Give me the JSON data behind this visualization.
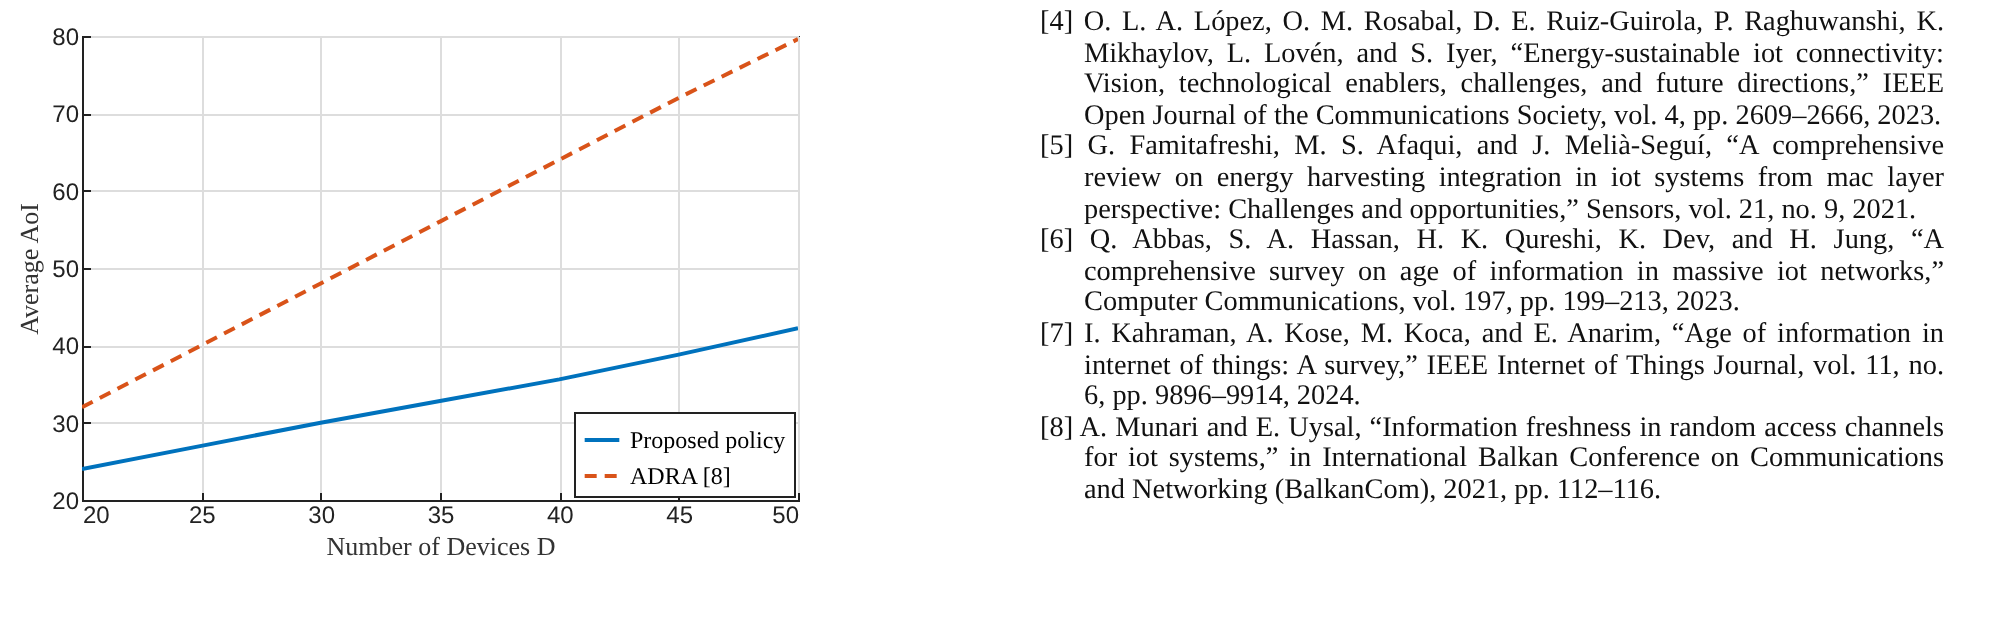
{
  "chart_data": {
    "type": "line",
    "xlabel": "Number of Devices D",
    "ylabel": "Average AoI",
    "x": [
      20,
      25,
      30,
      35,
      40,
      45,
      50
    ],
    "series": [
      {
        "name": "Proposed policy",
        "color": "#0072bd",
        "line_style": "solid",
        "values": [
          24,
          27,
          30,
          32.8,
          35.6,
          38.8,
          42.2
        ]
      },
      {
        "name": "ADRA [8]",
        "color": "#d95319",
        "line_style": "dashed",
        "values": [
          32,
          40,
          48,
          56,
          64,
          72,
          79.6
        ]
      }
    ],
    "xlim": [
      20,
      50
    ],
    "xticks": [
      20,
      25,
      30,
      35,
      40,
      45,
      50
    ],
    "ylim": [
      20,
      80
    ],
    "yticks": [
      20,
      30,
      40,
      50,
      60,
      70,
      80
    ],
    "grid": true,
    "legend": "bottom right",
    "annotations": [
      "[4] O. L. A. López, O. M. Rosabal, D. E. Ruiz-Guirola, P. Raghuwanshi, K. Mikhaylov, L. Lovén, and S. Iyer, “Energy-sustainable iot connectivity: Vision, technological enablers, challenges, and future directions,” IEEE Open Journal of the Communications Society, vol. 4, pp. 2609–2666, 2023.",
      "[5] G. Famitafreshi, M. S. Afaqui, and J. Melià-Seguí, “A comprehensive review on energy harvesting integration in iot systems from mac layer perspective: Challenges and opportunities,” Sensors, vol. 21, no. 9, 2021.",
      "[6] Q. Abbas, S. A. Hassan, H. K. Qureshi, K. Dev, and H. Jung, “A comprehensive survey on age of information in massive iot networks,” Computer Communications, vol. 197, pp. 199–213, 2023.",
      "[7] I. Kahraman, A. Kose, M. Koca, and E. Anarim, “Age of information in internet of things: A survey,” IEEE Internet of Things Journal, vol. 11, no. 6, pp. 9896–9914, 2024.",
      "[8] A. Munari and E. Uysal, “Information freshness in random access channels for iot systems,” in International Balkan Conference on Communications and Networking (BalkanCom), 2021, pp. 112–116."
    ]
  }
}
